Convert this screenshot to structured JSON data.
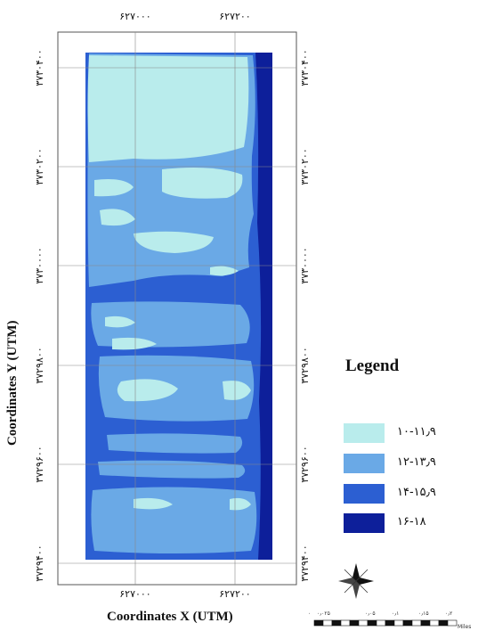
{
  "map": {
    "x_axis_title": "Coordinates X (UTM)",
    "y_axis_title": "Coordinates Y (UTM)",
    "x_ticks": [
      "۶۲۷۰۰۰",
      "۶۲۷۲۰۰"
    ],
    "y_ticks": [
      "۳۷۳۰۴۰۰",
      "۳۷۳۰۲۰۰",
      "۳۷۳۰۰۰۰",
      "۳۷۲۹۸۰۰",
      "۳۷۲۹۶۰۰",
      "۳۷۲۹۴۰۰"
    ],
    "legend": {
      "title": "Legend",
      "items": [
        {
          "label": "۱۰-۱۱٫۹",
          "color": "#b9ecec"
        },
        {
          "label": "۱۲-۱۳٫۹",
          "color": "#6aa9e6"
        },
        {
          "label": "۱۴-۱۵٫۹",
          "color": "#2c5fd2"
        },
        {
          "label": "۱۶-۱۸",
          "color": "#0d1f9a"
        }
      ]
    },
    "north_arrow_icon": "compass-rose-icon",
    "scale_bar": {
      "labels": [
        "۰",
        "۰٫۰۲۵",
        "۰٫۰۵",
        "۰٫۱",
        "۰٫۱۵",
        "۰٫۲"
      ],
      "unit": "Miles"
    }
  }
}
